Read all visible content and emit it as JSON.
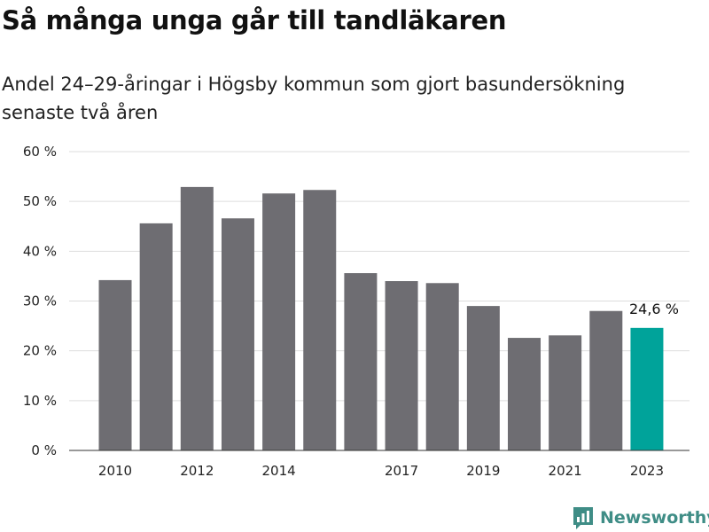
{
  "header": {
    "title": "Så många unga går till tandläkaren",
    "subtitle": "Andel 24–29-åringar i Högsby kommun som gjort basundersökning senaste två åren"
  },
  "brand": {
    "name": "Newsworthy"
  },
  "colors": {
    "bar": "#6e6d72",
    "highlight": "#00a39a",
    "grid": "#dddddd",
    "brand": "#3f8d86"
  },
  "chart_data": {
    "type": "bar",
    "categories": [
      "2010",
      "2011",
      "2012",
      "2013",
      "2014",
      "2015",
      "2016",
      "2017",
      "2018",
      "2019",
      "2020",
      "2021",
      "2022",
      "2023"
    ],
    "values": [
      34.2,
      45.6,
      52.9,
      46.6,
      51.6,
      52.3,
      35.6,
      34.0,
      33.6,
      29.0,
      22.6,
      23.1,
      28.0,
      24.6
    ],
    "x_tick_labels": [
      "2010",
      "2012",
      "2014",
      "2017",
      "2019",
      "2021",
      "2023"
    ],
    "y_ticks": [
      {
        "value": 0,
        "label": "0 %"
      },
      {
        "value": 10,
        "label": "10 %"
      },
      {
        "value": 20,
        "label": "20 %"
      },
      {
        "value": 30,
        "label": "30 %"
      },
      {
        "value": 40,
        "label": "40 %"
      },
      {
        "value": 50,
        "label": "50 %"
      },
      {
        "value": 60,
        "label": "60 %"
      }
    ],
    "ylim": [
      0,
      60
    ],
    "highlight_index": 13,
    "highlight_label": "24,6 %",
    "grid": true
  }
}
